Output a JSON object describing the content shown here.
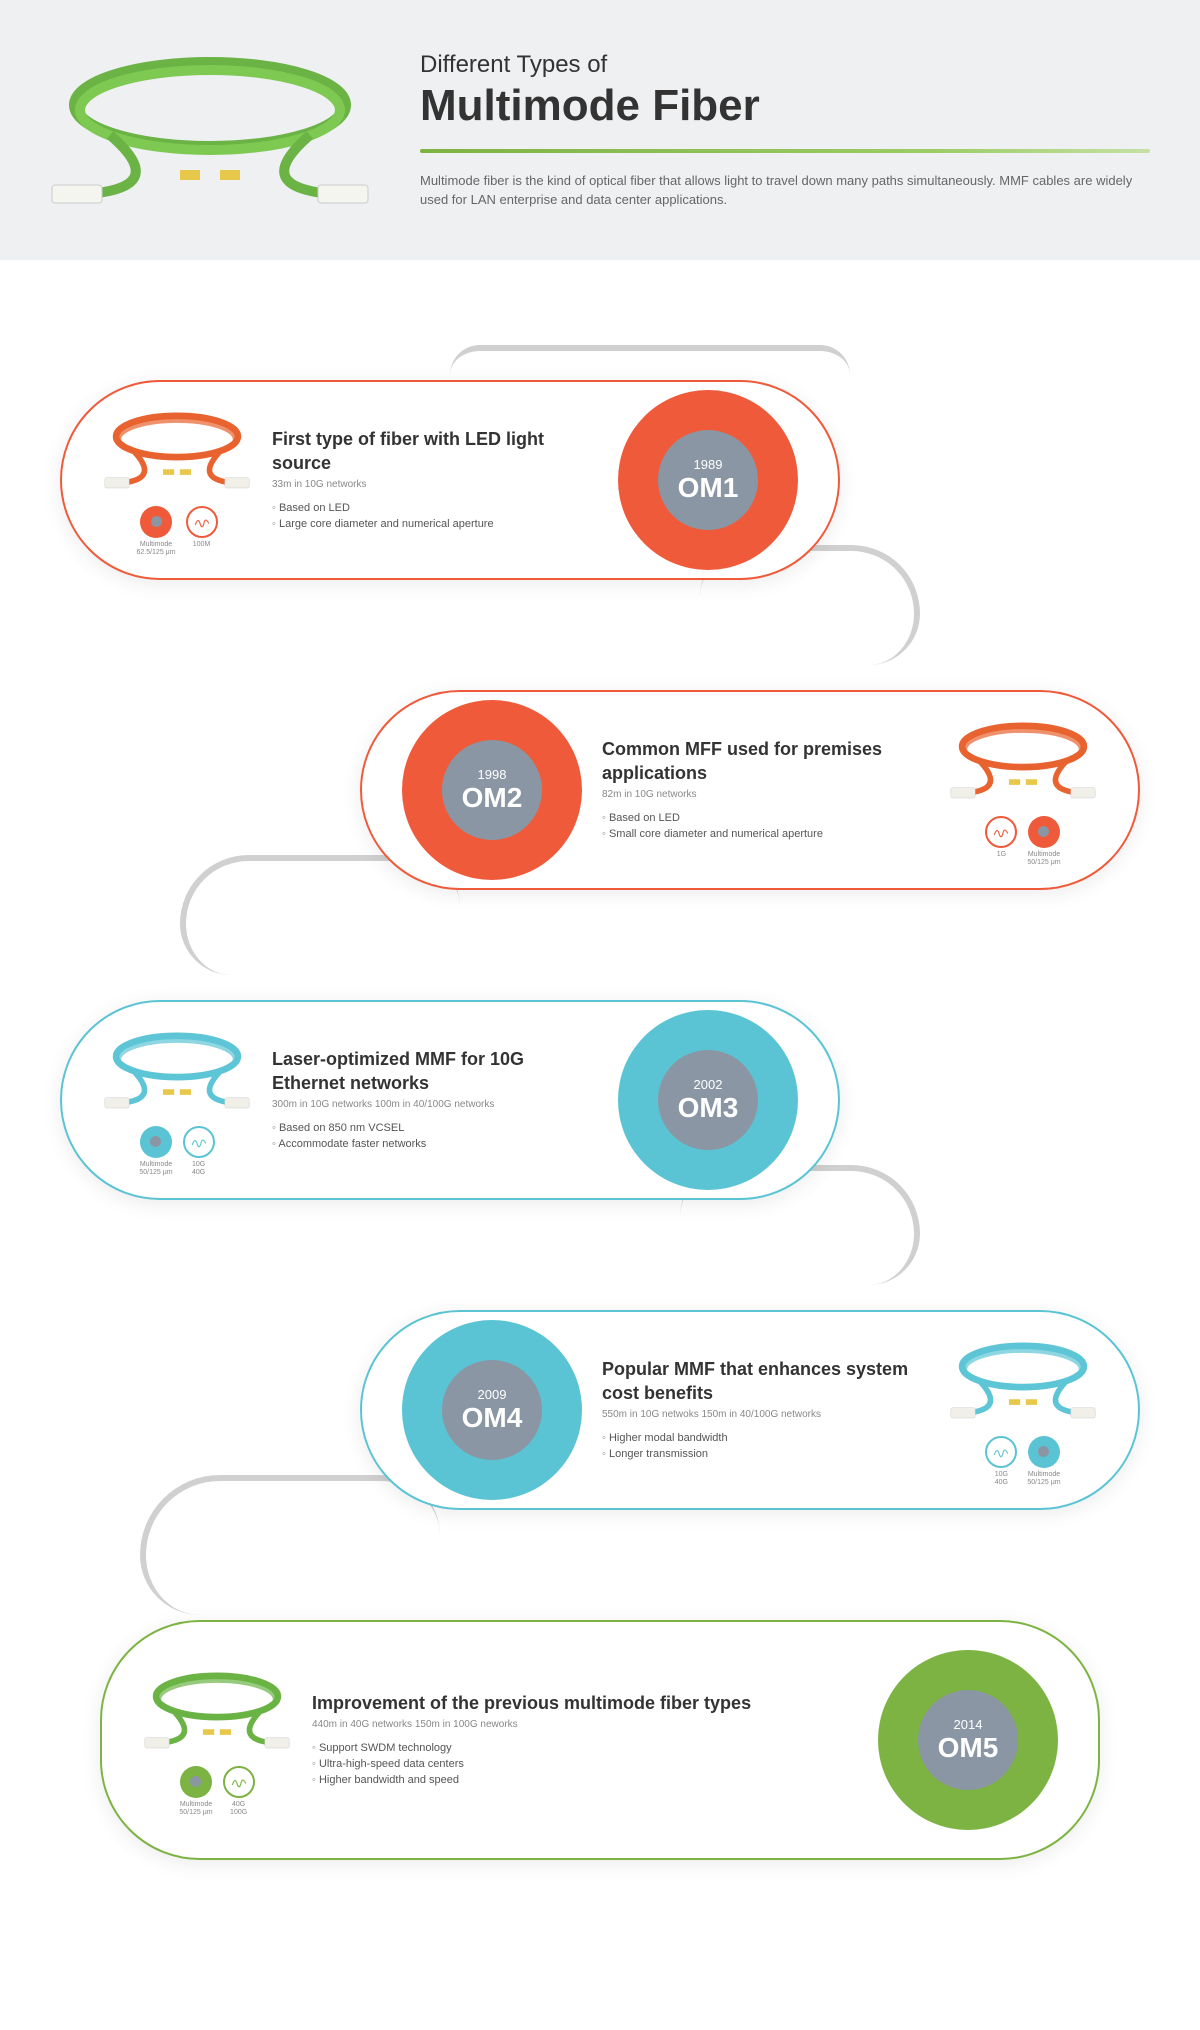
{
  "header": {
    "subtitle": "Different Types of",
    "title": "Multimode Fiber",
    "description": "Multimode fiber is the kind of optical fiber that allows light to travel down many paths simultaneously. MMF cables are widely used for LAN enterprise and data center applications."
  },
  "colors": {
    "om1": "#ef5a3a",
    "om2": "#ef5a3a",
    "om3": "#5bc4d4",
    "om4": "#5bc4d4",
    "om5": "#7cb342",
    "gray_inner": "#8a96a3",
    "connector": "#c8c8c8",
    "header_bg": "#eef0f2",
    "cable_green": "#6ab344",
    "cable_orange": "#e8632f",
    "cable_aqua": "#5dc5d6"
  },
  "fibers": [
    {
      "id": "om1",
      "year": "1989",
      "code": "OM1",
      "heading": "First type of fiber with LED light source",
      "sub": "33m in 10G networks",
      "bullets": [
        "Based on LED",
        "Large core diameter and numerical aperture"
      ],
      "cable_color": "#e8632f",
      "circle_color": "#ef5a3a",
      "icon_left_label": "Multimode\n62.5/125 μm",
      "icon_right_label": "100M",
      "layout": "left",
      "icon_pos": "left"
    },
    {
      "id": "om2",
      "year": "1998",
      "code": "OM2",
      "heading": "Common MFF used for premises applications",
      "sub": "82m in 10G networks",
      "bullets": [
        "Based on LED",
        "Small core diameter and numerical aperture"
      ],
      "cable_color": "#e8632f",
      "circle_color": "#ef5a3a",
      "icon_left_label": "1G",
      "icon_right_label": "Multimode\n50/125 μm",
      "layout": "right",
      "icon_pos": "right"
    },
    {
      "id": "om3",
      "year": "2002",
      "code": "OM3",
      "heading": "Laser-optimized MMF for 10G Ethernet networks",
      "sub": "300m in 10G networks    100m in 40/100G networks",
      "bullets": [
        "Based on 850 nm VCSEL",
        "Accommodate faster networks"
      ],
      "cable_color": "#5dc5d6",
      "circle_color": "#5bc4d4",
      "icon_left_label": "Multimode\n50/125 μm",
      "icon_right_label": "10G\n40G",
      "layout": "left",
      "icon_pos": "left"
    },
    {
      "id": "om4",
      "year": "2009",
      "code": "OM4",
      "heading": "Popular MMF that enhances system cost benefits",
      "sub": "550m in 10G netwoks    150m in 40/100G networks",
      "bullets": [
        "Higher modal bandwidth",
        "Longer transmission"
      ],
      "cable_color": "#5dc5d6",
      "circle_color": "#5bc4d4",
      "icon_left_label": "10G\n40G",
      "icon_right_label": "Multimode\n50/125 μm",
      "layout": "right",
      "icon_pos": "right"
    },
    {
      "id": "om5",
      "year": "2014",
      "code": "OM5",
      "heading": "Improvement of the previous multimode fiber types",
      "sub": "440m in 40G networks    150m in 100G neworks",
      "bullets": [
        "Support SWDM technology",
        "Ultra-high-speed data centers",
        "Higher bandwidth and speed"
      ],
      "cable_color": "#6ab344",
      "circle_color": "#7cb342",
      "icon_left_label": "Multimode\n50/125 μm",
      "icon_right_label": "40G\n100G",
      "layout": "wide",
      "icon_pos": "left"
    }
  ]
}
